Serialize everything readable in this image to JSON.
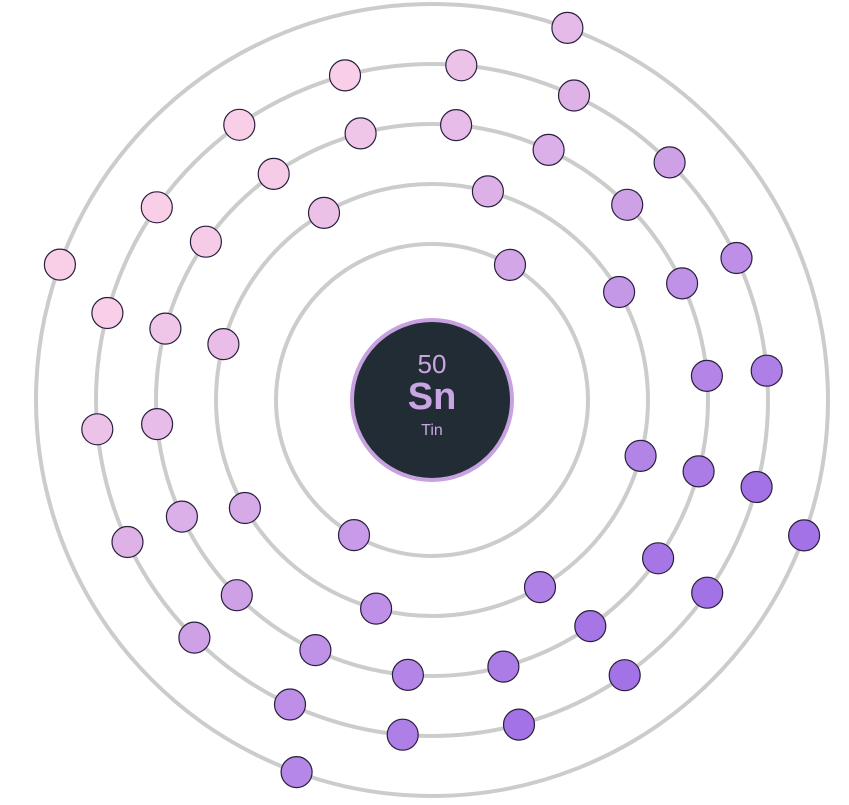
{
  "element": {
    "atomic_number": "50",
    "symbol": "Sn",
    "name": "Tin"
  },
  "shell_electron_counts": [
    2,
    8,
    18,
    18,
    4
  ],
  "colors": {
    "shell_ring": "#cccccc",
    "nucleus_fill": "#222c35",
    "nucleus_border": "#c8a2e0",
    "nucleus_text": "#c9a5e3",
    "electron_gradient_start": "#f9cfe8",
    "electron_gradient_end": "#a272e6",
    "electron_outline": "#2a1f3d"
  }
}
